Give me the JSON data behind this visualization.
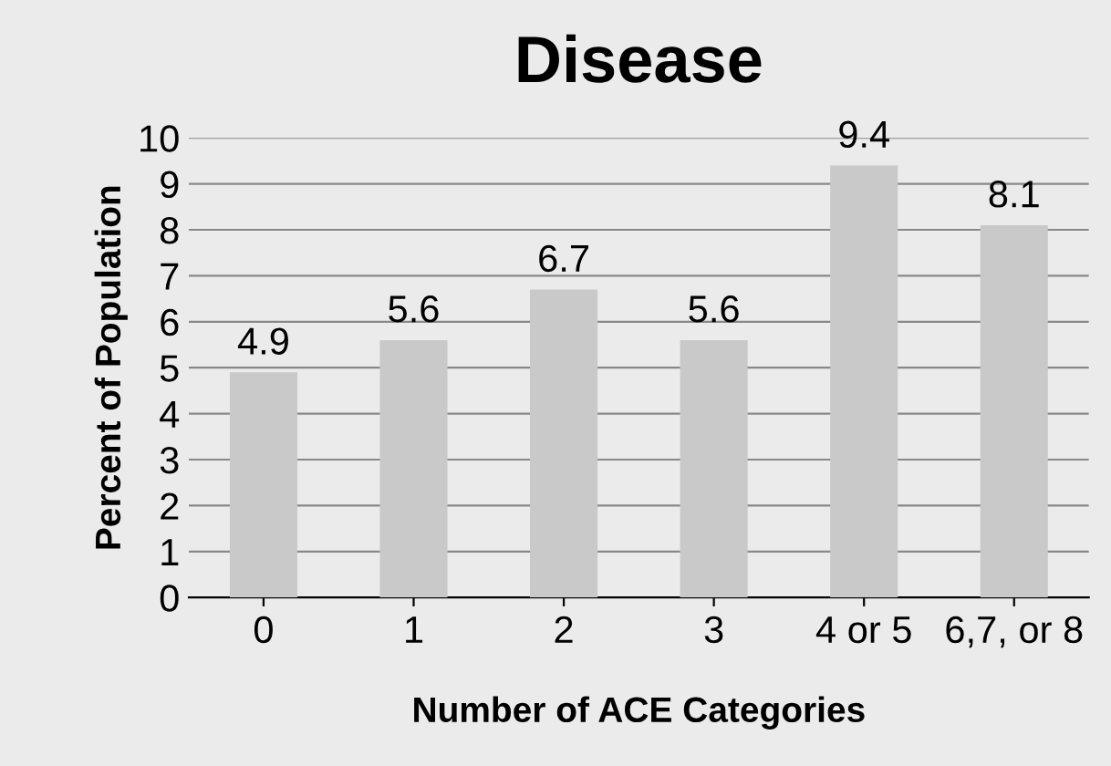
{
  "chart_data": {
    "type": "bar",
    "title": "Disease",
    "xlabel": "Number of ACE Categories",
    "ylabel": "Percent of Population",
    "categories": [
      "0",
      "1",
      "2",
      "3",
      "4 or 5",
      "6,7, or 8"
    ],
    "values": [
      4.9,
      5.6,
      6.7,
      5.6,
      9.4,
      8.1
    ],
    "color": "#c9c9c9",
    "data_labels": true,
    "ylim": [
      0,
      10
    ],
    "yticks": [
      0,
      1,
      2,
      3,
      4,
      5,
      6,
      7,
      8,
      9,
      10
    ],
    "grid": "y",
    "legend": false
  }
}
